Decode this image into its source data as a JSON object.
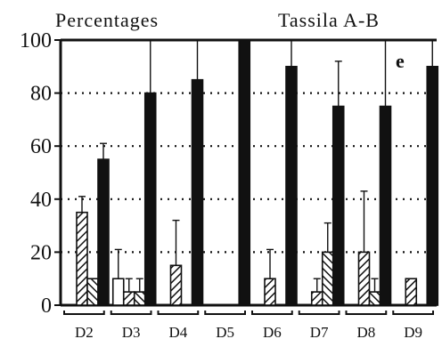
{
  "chart_data": {
    "type": "bar",
    "title": "Percentages",
    "subtitle": "Tassila A-B",
    "panel_label": "e",
    "xlabel": "",
    "ylabel": "",
    "ylim": [
      0,
      100
    ],
    "yticks": [
      0,
      20,
      40,
      60,
      80,
      100
    ],
    "grid": "dotted-horizontal",
    "categories": [
      "D2",
      "D3",
      "D4",
      "D5",
      "D6",
      "D7",
      "D8",
      "D9"
    ],
    "series": [
      {
        "fill": "white",
        "values": [
          0,
          10,
          0,
          0,
          0,
          0,
          0,
          0
        ],
        "errors": [
          0,
          11,
          0,
          0,
          0,
          0,
          0,
          0
        ]
      },
      {
        "fill": "hatched",
        "values": [
          35,
          5,
          15,
          0,
          10,
          5,
          20,
          10
        ],
        "errors": [
          6,
          5,
          17,
          0,
          11,
          5,
          23,
          0
        ]
      },
      {
        "fill": "cross-hatched",
        "values": [
          10,
          5,
          0,
          0,
          0,
          20,
          5,
          0
        ],
        "errors": [
          0,
          5,
          0,
          0,
          0,
          11,
          5,
          0
        ]
      },
      {
        "fill": "black",
        "values": [
          55,
          80,
          85,
          100,
          90,
          75,
          75,
          90
        ],
        "errors": [
          6,
          20,
          15,
          0,
          10,
          17,
          25,
          10
        ]
      }
    ]
  }
}
